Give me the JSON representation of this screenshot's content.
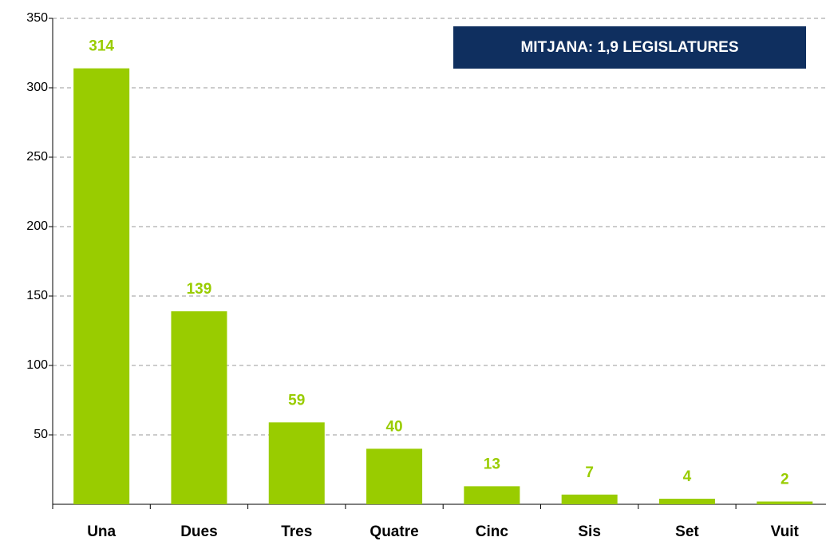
{
  "chart_data": {
    "type": "bar",
    "annotation": "MITJANA: 1,9 LEGISLATURES",
    "categories": [
      "Una",
      "Dues",
      "Tres",
      "Quatre",
      "Cinc",
      "Sis",
      "Set",
      "Vuit"
    ],
    "values": [
      314,
      139,
      59,
      40,
      13,
      7,
      4,
      2
    ],
    "color": "#99cc00",
    "ylim": [
      0,
      350
    ],
    "yticks": [
      50,
      100,
      150,
      200,
      250,
      300,
      350
    ],
    "grid": true
  }
}
